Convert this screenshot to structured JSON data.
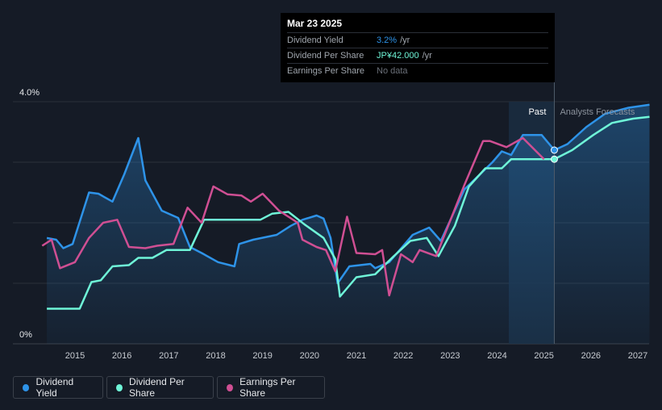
{
  "chart_data": {
    "type": "line",
    "y_axis": {
      "top_label": "4.0%",
      "bottom_label": "0%",
      "ylim": [
        0,
        4.0
      ]
    },
    "x_ticks": [
      "2015",
      "2016",
      "2017",
      "2018",
      "2019",
      "2020",
      "2021",
      "2022",
      "2023",
      "2024",
      "2025",
      "2026",
      "2027"
    ],
    "xlim": [
      2014.0,
      2027.25
    ],
    "regions": {
      "past_label": "Past",
      "forecast_label": "Analysts Forecasts",
      "past_start": 2024.25,
      "divider": 2025.22
    },
    "grid": true,
    "colors": {
      "yield": "#2e93e8",
      "dps": "#6ff5d8",
      "eps": "#cf4f93"
    },
    "series": [
      {
        "name": "Dividend Yield",
        "key": "yield",
        "points": [
          [
            2014.4,
            1.75
          ],
          [
            2014.6,
            1.72
          ],
          [
            2014.75,
            1.58
          ],
          [
            2014.95,
            1.65
          ],
          [
            2015.3,
            2.5
          ],
          [
            2015.5,
            2.48
          ],
          [
            2015.8,
            2.35
          ],
          [
            2016.05,
            2.8
          ],
          [
            2016.35,
            3.4
          ],
          [
            2016.5,
            2.7
          ],
          [
            2016.85,
            2.2
          ],
          [
            2017.2,
            2.08
          ],
          [
            2017.45,
            1.6
          ],
          [
            2017.7,
            1.5
          ],
          [
            2018.05,
            1.35
          ],
          [
            2018.4,
            1.28
          ],
          [
            2018.5,
            1.65
          ],
          [
            2018.8,
            1.72
          ],
          [
            2019.3,
            1.8
          ],
          [
            2019.6,
            1.95
          ],
          [
            2019.85,
            2.05
          ],
          [
            2020.15,
            2.12
          ],
          [
            2020.3,
            2.07
          ],
          [
            2020.45,
            1.75
          ],
          [
            2020.6,
            1.0
          ],
          [
            2020.85,
            1.28
          ],
          [
            2021.3,
            1.32
          ],
          [
            2021.4,
            1.25
          ],
          [
            2021.7,
            1.35
          ],
          [
            2022.2,
            1.8
          ],
          [
            2022.55,
            1.92
          ],
          [
            2022.8,
            1.7
          ],
          [
            2023.3,
            2.55
          ],
          [
            2023.9,
            3.0
          ],
          [
            2024.1,
            3.18
          ],
          [
            2024.3,
            3.12
          ],
          [
            2024.55,
            3.45
          ],
          [
            2024.95,
            3.45
          ],
          [
            2025.22,
            3.2
          ]
        ],
        "forecast": [
          [
            2025.22,
            3.2
          ],
          [
            2025.5,
            3.3
          ],
          [
            2025.9,
            3.58
          ],
          [
            2026.3,
            3.8
          ],
          [
            2026.8,
            3.9
          ],
          [
            2027.25,
            3.95
          ]
        ]
      },
      {
        "name": "Dividend Per Share",
        "key": "dps",
        "points": [
          [
            2014.4,
            0.58
          ],
          [
            2015.1,
            0.58
          ],
          [
            2015.35,
            1.02
          ],
          [
            2015.55,
            1.05
          ],
          [
            2015.8,
            1.28
          ],
          [
            2016.15,
            1.3
          ],
          [
            2016.35,
            1.42
          ],
          [
            2016.65,
            1.42
          ],
          [
            2016.95,
            1.55
          ],
          [
            2017.45,
            1.55
          ],
          [
            2017.75,
            2.05
          ],
          [
            2018.95,
            2.05
          ],
          [
            2019.2,
            2.15
          ],
          [
            2019.55,
            2.18
          ],
          [
            2019.9,
            1.97
          ],
          [
            2020.3,
            1.75
          ],
          [
            2020.55,
            1.4
          ],
          [
            2020.65,
            0.78
          ],
          [
            2021.0,
            1.1
          ],
          [
            2021.4,
            1.15
          ],
          [
            2021.8,
            1.45
          ],
          [
            2022.15,
            1.7
          ],
          [
            2022.5,
            1.75
          ],
          [
            2022.75,
            1.45
          ],
          [
            2023.1,
            1.95
          ],
          [
            2023.4,
            2.6
          ],
          [
            2023.75,
            2.9
          ],
          [
            2024.1,
            2.9
          ],
          [
            2024.3,
            3.05
          ],
          [
            2024.95,
            3.05
          ],
          [
            2025.22,
            3.05
          ]
        ],
        "forecast": [
          [
            2025.22,
            3.05
          ],
          [
            2025.6,
            3.2
          ],
          [
            2026.05,
            3.45
          ],
          [
            2026.45,
            3.65
          ],
          [
            2026.9,
            3.72
          ],
          [
            2027.25,
            3.75
          ]
        ]
      },
      {
        "name": "Earnings Per Share",
        "key": "eps",
        "points": [
          [
            2014.3,
            1.62
          ],
          [
            2014.5,
            1.72
          ],
          [
            2014.68,
            1.25
          ],
          [
            2015.0,
            1.35
          ],
          [
            2015.3,
            1.75
          ],
          [
            2015.6,
            2.0
          ],
          [
            2015.9,
            2.05
          ],
          [
            2016.15,
            1.6
          ],
          [
            2016.5,
            1.58
          ],
          [
            2016.75,
            1.62
          ],
          [
            2017.1,
            1.65
          ],
          [
            2017.4,
            2.25
          ],
          [
            2017.7,
            2.0
          ],
          [
            2017.95,
            2.6
          ],
          [
            2018.25,
            2.47
          ],
          [
            2018.55,
            2.45
          ],
          [
            2018.75,
            2.35
          ],
          [
            2019.0,
            2.48
          ],
          [
            2019.35,
            2.2
          ],
          [
            2019.75,
            2.0
          ],
          [
            2019.85,
            1.72
          ],
          [
            2020.15,
            1.6
          ],
          [
            2020.35,
            1.55
          ],
          [
            2020.55,
            1.2
          ],
          [
            2020.8,
            2.1
          ],
          [
            2021.0,
            1.5
          ],
          [
            2021.4,
            1.48
          ],
          [
            2021.55,
            1.55
          ],
          [
            2021.7,
            0.8
          ],
          [
            2021.95,
            1.48
          ],
          [
            2022.2,
            1.35
          ],
          [
            2022.35,
            1.55
          ],
          [
            2022.7,
            1.45
          ],
          [
            2023.3,
            2.62
          ],
          [
            2023.7,
            3.35
          ],
          [
            2023.85,
            3.35
          ],
          [
            2024.2,
            3.25
          ],
          [
            2024.55,
            3.4
          ],
          [
            2025.0,
            3.05
          ]
        ]
      }
    ],
    "marker_date": 2025.22
  },
  "tooltip": {
    "date": "Mar 23 2025",
    "rows": [
      {
        "label": "Dividend Yield",
        "value": "3.2%",
        "unit": "/yr"
      },
      {
        "label": "Dividend Per Share",
        "value": "JP¥42.000",
        "unit": "/yr"
      },
      {
        "label": "Earnings Per Share",
        "value": "No data",
        "unit": ""
      }
    ]
  },
  "legend": {
    "items": [
      "Dividend Yield",
      "Dividend Per Share",
      "Earnings Per Share"
    ]
  }
}
